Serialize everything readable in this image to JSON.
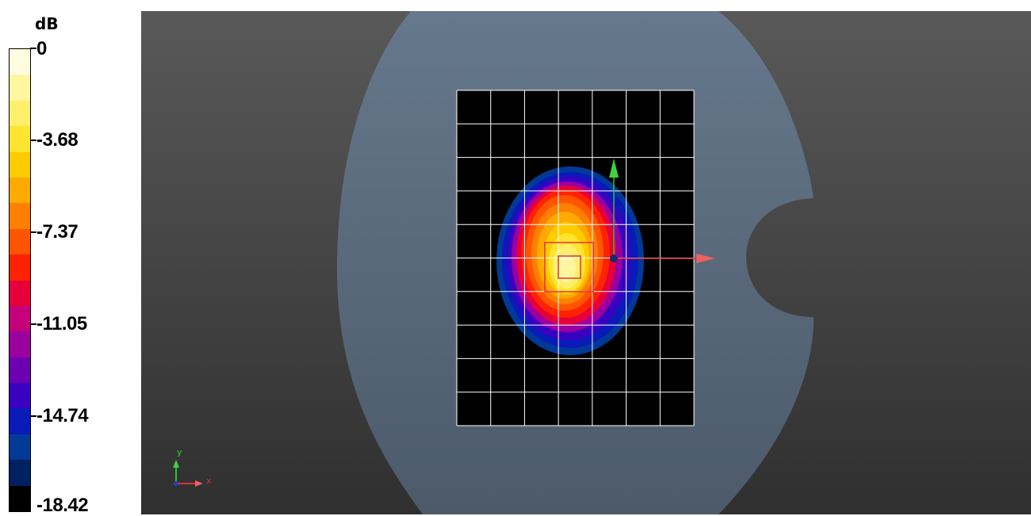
{
  "legend": {
    "unit": "dB",
    "ticks": [
      "0",
      "-3.68",
      "-7.37",
      "-11.05",
      "-14.74",
      "-18.42"
    ],
    "colors": [
      "#fffde0",
      "#fff7a0",
      "#ffef6a",
      "#ffe430",
      "#ffcc00",
      "#ffaa00",
      "#ff8000",
      "#ff5500",
      "#ff2200",
      "#e6003a",
      "#c4007a",
      "#9a00a0",
      "#6c00b0",
      "#3a00c0",
      "#0a1ab8",
      "#003a96",
      "#002060",
      "#000000"
    ]
  },
  "viewport": {
    "background_top": "#595959",
    "background_bottom": "#2f2f2f",
    "phantom_color": "#5e6e82",
    "grid_color": "#ffffff",
    "measurement_area_color": "#000000",
    "marker_color": "#e0303a",
    "axis_x_color": "#e03030",
    "axis_y_color": "#30c030"
  },
  "orientation_triad": {
    "x_label": "x",
    "y_label": "y"
  }
}
